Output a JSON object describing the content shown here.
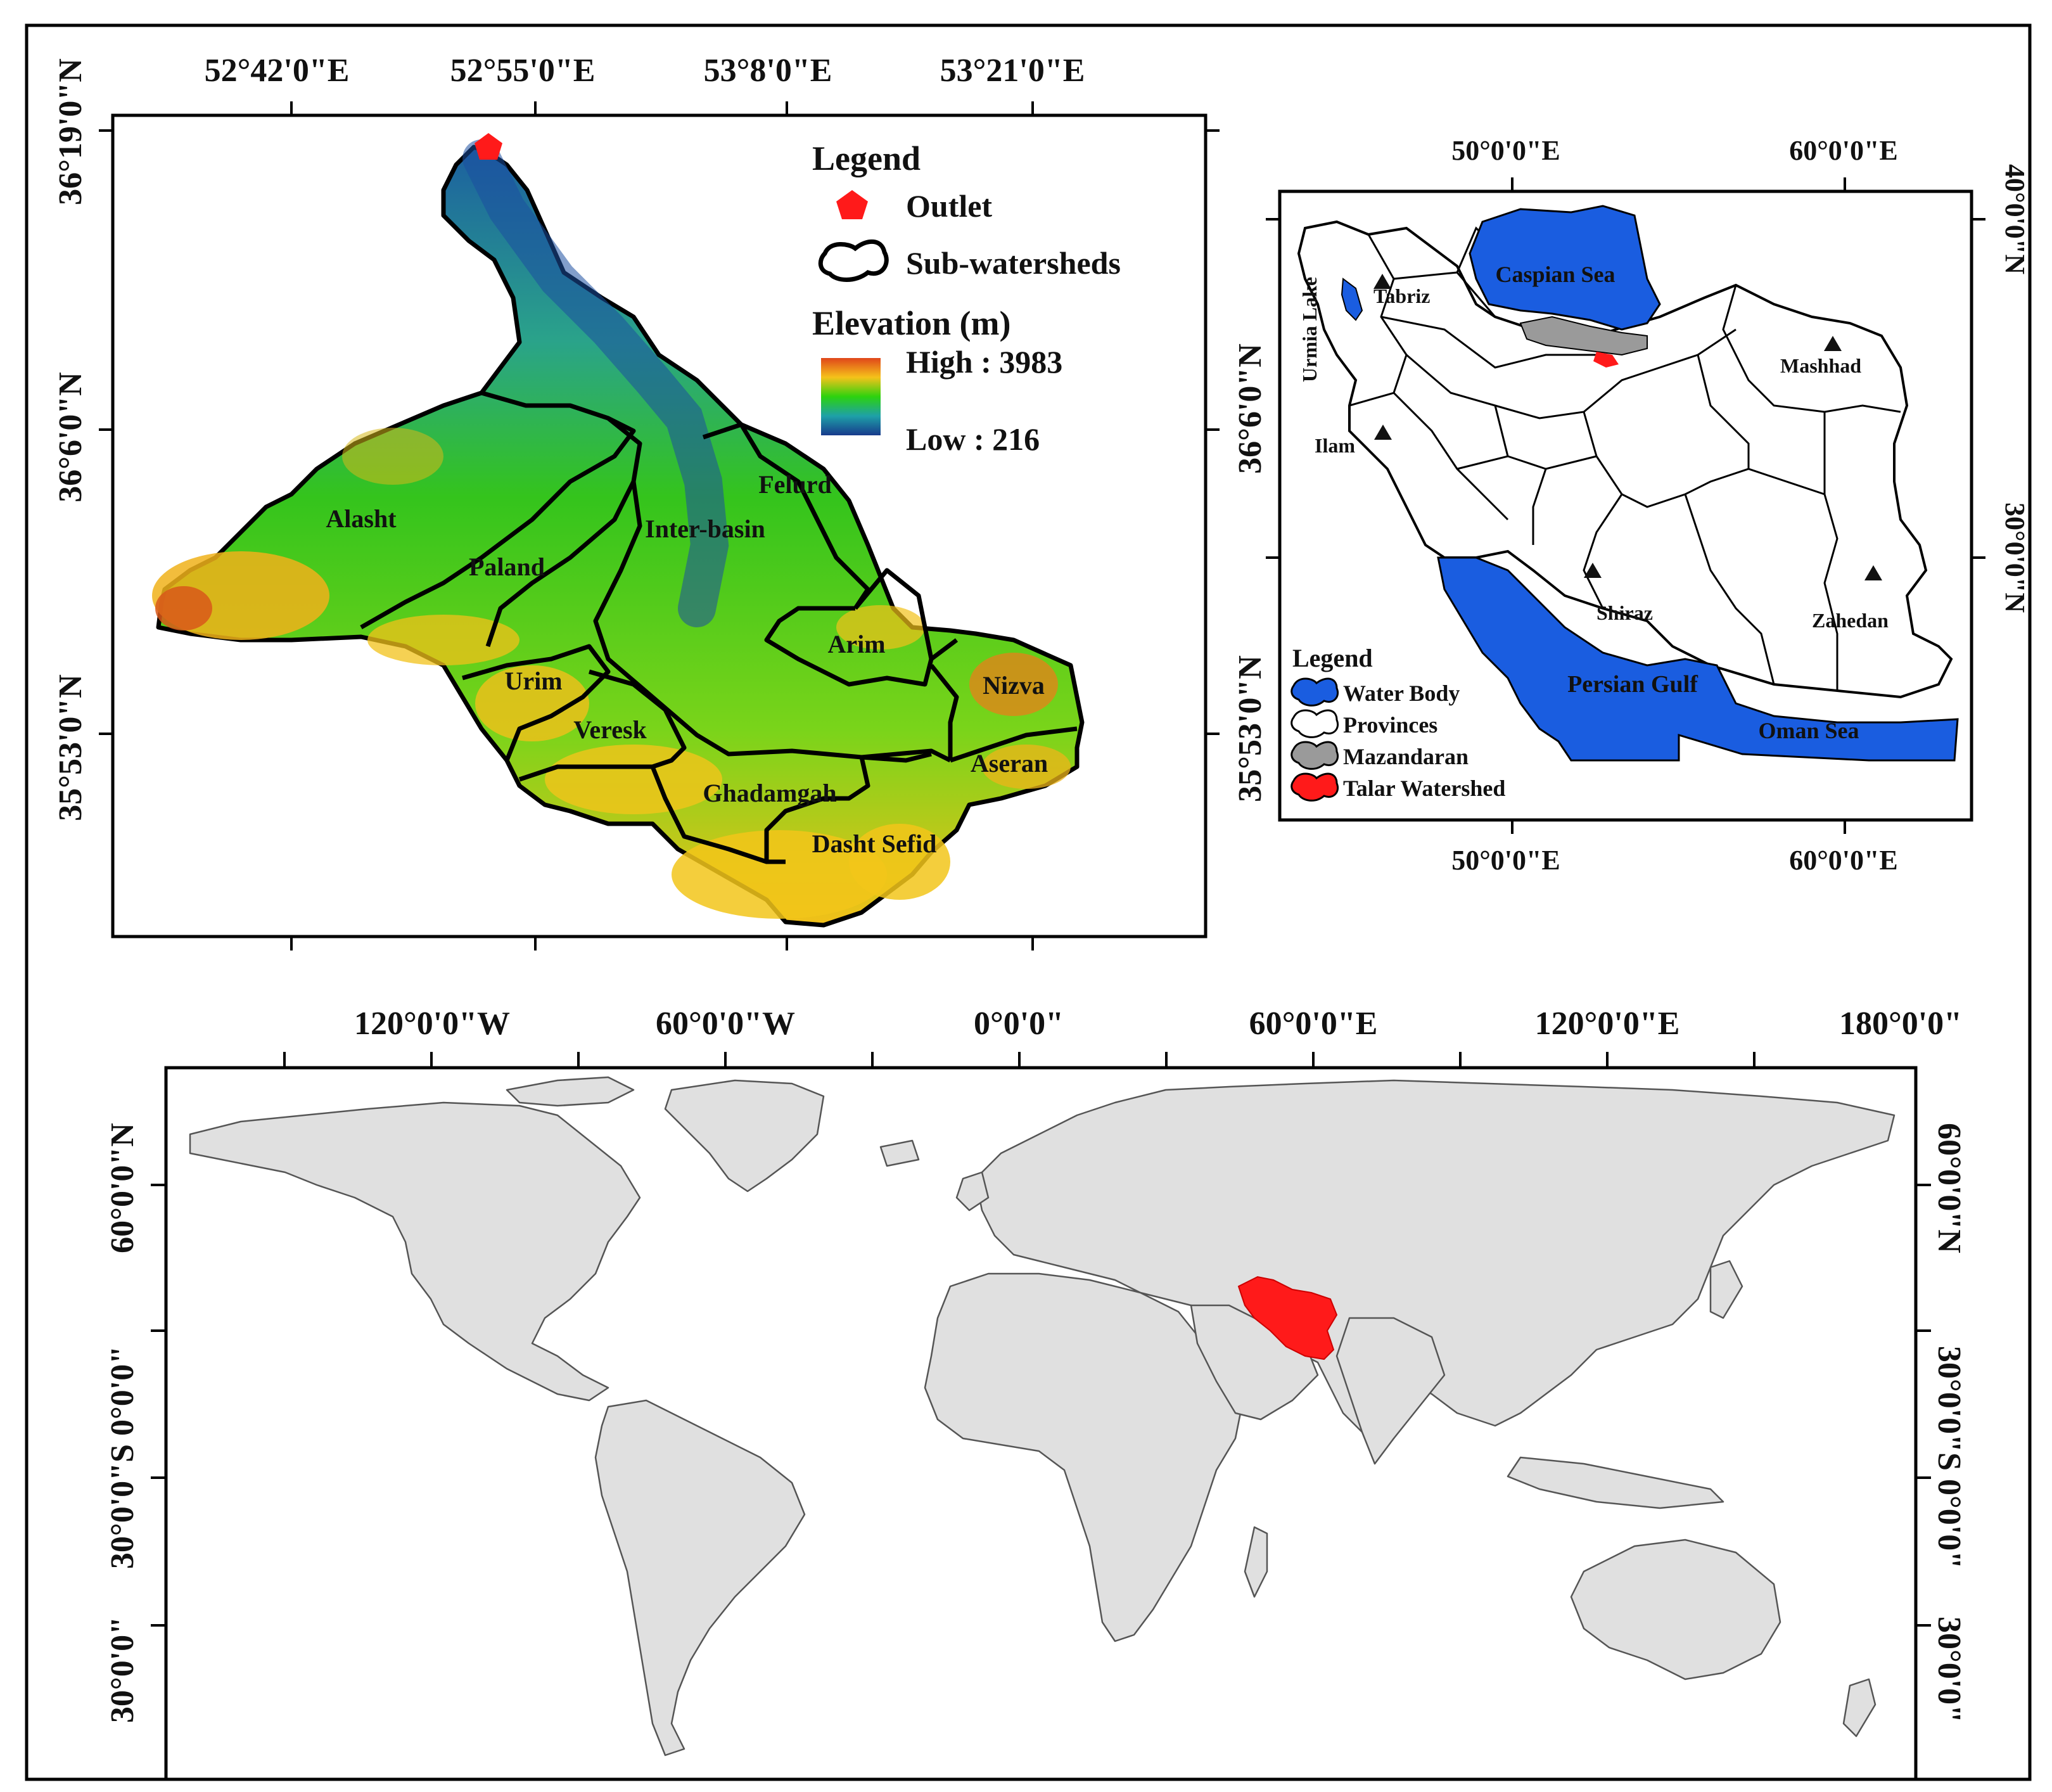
{
  "panel_a": {
    "top_ticks": [
      "52°42'0\"E",
      "52°55'0\"E",
      "53°8'0\"E",
      "53°21'0\"E"
    ],
    "left_ticks": [
      "36°19'0\"N",
      "36°6'0\"N",
      "35°53'0\"N"
    ],
    "right_ticks": [
      "36°6'0\"N",
      "35°53'0\"N"
    ],
    "legend": {
      "title": "Legend",
      "outlet": "Outlet",
      "subwatersheds": "Sub-watersheds",
      "elevation_title": "Elevation (m)",
      "high": "High : 3983",
      "low": "Low : 216"
    },
    "subwatersheds": [
      "Alasht",
      "Paland",
      "Inter-basin",
      "Felurd",
      "Arim",
      "Urim",
      "Veresk",
      "Nizva",
      "Aseran",
      "Ghadamgah",
      "Dasht Sefid"
    ],
    "colors": {
      "outlet": "#ff1a1a",
      "elev_low": "#1a3f8f",
      "elev_mid": "#22c40c",
      "elev_high": "#e04a18"
    }
  },
  "panel_b": {
    "top_ticks": [
      "50°0'0\"E",
      "60°0'0\"E"
    ],
    "bottom_ticks": [
      "50°0'0\"E",
      "60°0'0\"E"
    ],
    "right_ticks": [
      "40°0'0\"N",
      "30°0'0\"N"
    ],
    "cities": [
      "Tabriz",
      "Mashhad",
      "Ilam",
      "Shiraz",
      "Zahedan"
    ],
    "labels": {
      "urmia": "Urmia Lake",
      "caspian": "Caspian Sea",
      "gulf": "Persian Gulf",
      "oman": "Oman Sea"
    },
    "legend": {
      "title": "Legend",
      "items": [
        "Water Body",
        "Provinces",
        "Mazandaran",
        "Talar Watershed"
      ]
    },
    "colors": {
      "water": "#1a5de0",
      "mazandaran": "#9a9a9a",
      "talar": "#ff1a1a"
    }
  },
  "panel_c": {
    "top_ticks": [
      "120°0'0\"W",
      "60°0'0\"W",
      "0°0'0\"",
      "60°0'0\"E",
      "120°0'0\"E",
      "180°0'0\""
    ],
    "left_ticks": [
      "60°0'0\"N",
      "30°0'0\"",
      "30°0'0\"S 0°0'0\""
    ],
    "right_ticks": [
      "60°0'0\"N",
      "30°0'0\"",
      "30°0'0\"S 0°0'0\""
    ],
    "colors": {
      "land": "#e0e0e0",
      "iran": "#ff1a1a"
    }
  }
}
